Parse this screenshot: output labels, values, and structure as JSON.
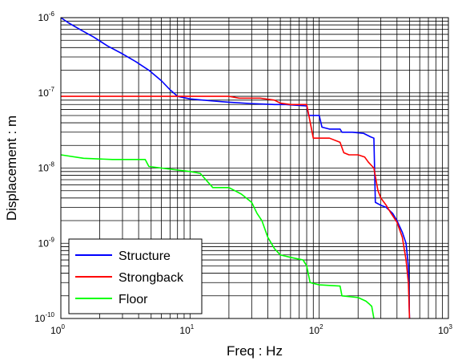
{
  "chart_data": {
    "type": "line",
    "xlabel": "Freq : Hz",
    "ylabel": "Displacement : m",
    "xscale": "log",
    "yscale": "log",
    "xlim": [
      1,
      1000
    ],
    "ylim": [
      1e-10,
      1e-06
    ],
    "grid": true,
    "legend_position": "bottom-left",
    "x_ticks": [
      {
        "base": "10",
        "exp": "0"
      },
      {
        "base": "10",
        "exp": "1"
      },
      {
        "base": "10",
        "exp": "2"
      },
      {
        "base": "10",
        "exp": "3"
      }
    ],
    "y_ticks": [
      {
        "base": "10",
        "exp": "-10"
      },
      {
        "base": "10",
        "exp": "-9"
      },
      {
        "base": "10",
        "exp": "-8"
      },
      {
        "base": "10",
        "exp": "-7"
      },
      {
        "base": "10",
        "exp": "-6"
      }
    ],
    "series": [
      {
        "name": "Structure",
        "color": "#0000ff",
        "points": [
          [
            1.0,
            1e-06
          ],
          [
            1.15,
            8.5e-07
          ],
          [
            1.4,
            7e-07
          ],
          [
            1.8,
            5.5e-07
          ],
          [
            2.3,
            4.2e-07
          ],
          [
            3.0,
            3.3e-07
          ],
          [
            3.8,
            2.6e-07
          ],
          [
            4.8,
            2e-07
          ],
          [
            6.0,
            1.45e-07
          ],
          [
            7.0,
            1.1e-07
          ],
          [
            8.0,
            9e-08
          ],
          [
            10.0,
            8.3e-08
          ],
          [
            15.0,
            7.8e-08
          ],
          [
            20.0,
            7.5e-08
          ],
          [
            30.0,
            7.2e-08
          ],
          [
            45.0,
            7e-08
          ],
          [
            55.0,
            7e-08
          ],
          [
            70.0,
            6.8e-08
          ],
          [
            80.0,
            6.7e-08
          ],
          [
            83.0,
            5e-08
          ],
          [
            100.0,
            5e-08
          ],
          [
            105.0,
            3.5e-08
          ],
          [
            120.0,
            3.3e-08
          ],
          [
            145.0,
            3.3e-08
          ],
          [
            150.0,
            3e-08
          ],
          [
            180.0,
            3e-08
          ],
          [
            220.0,
            2.9e-08
          ],
          [
            250.0,
            2.6e-08
          ],
          [
            265.0,
            2.5e-08
          ],
          [
            272.0,
            3.5e-09
          ],
          [
            300.0,
            3.2e-09
          ],
          [
            330.0,
            3e-09
          ],
          [
            370.0,
            2.5e-09
          ],
          [
            400.0,
            2e-09
          ],
          [
            440.0,
            1.4e-09
          ],
          [
            470.0,
            1e-09
          ],
          [
            490.0,
            5e-10
          ],
          [
            500.0,
            1e-10
          ]
        ]
      },
      {
        "name": "Strongback",
        "color": "#ff0000",
        "points": [
          [
            1.0,
            9e-08
          ],
          [
            10.0,
            9e-08
          ],
          [
            20.0,
            9e-08
          ],
          [
            24.0,
            8.5e-08
          ],
          [
            35.0,
            8.5e-08
          ],
          [
            45.0,
            8e-08
          ],
          [
            50.0,
            7.3e-08
          ],
          [
            60.0,
            7e-08
          ],
          [
            80.0,
            7e-08
          ],
          [
            90.0,
            2.5e-08
          ],
          [
            120.0,
            2.5e-08
          ],
          [
            145.0,
            2.2e-08
          ],
          [
            155.0,
            1.6e-08
          ],
          [
            170.0,
            1.5e-08
          ],
          [
            200.0,
            1.5e-08
          ],
          [
            225.0,
            1.4e-08
          ],
          [
            240.0,
            1.2e-08
          ],
          [
            265.0,
            1e-08
          ],
          [
            285.0,
            5e-09
          ],
          [
            300.0,
            4e-09
          ],
          [
            330.0,
            3.2e-09
          ],
          [
            360.0,
            2.5e-09
          ],
          [
            400.0,
            1.9e-09
          ],
          [
            440.0,
            1.2e-09
          ],
          [
            470.0,
            6e-10
          ],
          [
            490.0,
            3e-10
          ],
          [
            500.0,
            1e-10
          ]
        ]
      },
      {
        "name": "Floor",
        "color": "#00ff00",
        "points": [
          [
            1.0,
            1.5e-08
          ],
          [
            1.5,
            1.35e-08
          ],
          [
            2.5,
            1.3e-08
          ],
          [
            4.5,
            1.3e-08
          ],
          [
            4.8,
            1.05e-08
          ],
          [
            6.0,
            1e-08
          ],
          [
            10.0,
            9e-09
          ],
          [
            12.0,
            8.5e-09
          ],
          [
            15.0,
            5.5e-09
          ],
          [
            20.0,
            5.5e-09
          ],
          [
            25.0,
            4.5e-09
          ],
          [
            30.0,
            3.5e-09
          ],
          [
            33.0,
            2.5e-09
          ],
          [
            36.0,
            2e-09
          ],
          [
            40.0,
            1.2e-09
          ],
          [
            45.0,
            8.5e-10
          ],
          [
            50.0,
            7e-10
          ],
          [
            60.0,
            6.5e-10
          ],
          [
            75.0,
            6e-10
          ],
          [
            80.0,
            5e-10
          ],
          [
            85.0,
            3e-10
          ],
          [
            100.0,
            2.8e-10
          ],
          [
            145.0,
            2.7e-10
          ],
          [
            150.0,
            2e-10
          ],
          [
            200.0,
            1.9e-10
          ],
          [
            230.0,
            1.7e-10
          ],
          [
            245.0,
            1.55e-10
          ],
          [
            255.0,
            1.45e-10
          ],
          [
            265.0,
            1e-10
          ]
        ]
      }
    ]
  }
}
